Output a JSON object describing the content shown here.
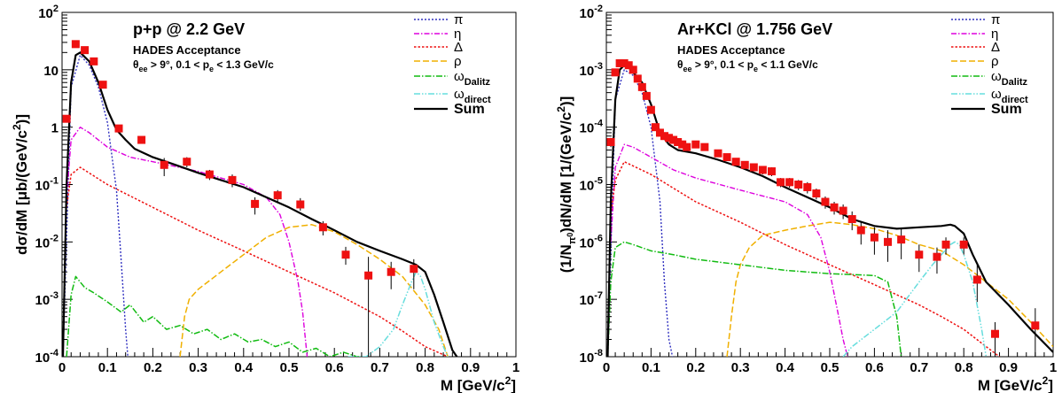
{
  "chart_data": [
    {
      "type": "line",
      "title": "p+p @ 2.2 GeV",
      "subtitle_lines": [
        "HADES Acceptance"
      ],
      "cuts": {
        "theta": "θ",
        "ee": "ee",
        "cut1": " > 9°, 0.1 < p",
        "e": "e",
        "cut2": " < 1.3 GeV/c"
      },
      "xlabel": "M [GeV/c²]",
      "ylabel": "dσ/dM [μb/(GeV/c²)]",
      "xlim": [
        0,
        1
      ],
      "ylim": [
        0.0001,
        100
      ],
      "yscale": "log",
      "xticks": [
        "0",
        "0.1",
        "0.2",
        "0.3",
        "0.4",
        "0.5",
        "0.6",
        "0.7",
        "0.8",
        "0.9",
        "1"
      ],
      "yticks": [
        {
          "base": "10",
          "exp": "-4",
          "v": 0.0001
        },
        {
          "base": "10",
          "exp": "-3",
          "v": 0.001
        },
        {
          "base": "10",
          "exp": "-2",
          "v": 0.01
        },
        {
          "base": "10",
          "exp": "-1",
          "v": 0.1
        },
        {
          "base": "1",
          "exp": "",
          "v": 1
        },
        {
          "base": "10",
          "exp": "",
          "v": 10
        },
        {
          "base": "10",
          "exp": "2",
          "v": 100
        }
      ],
      "legend_position": "top-right",
      "series": [
        {
          "name": "π",
          "color": "#3030c0",
          "dash": "2,2",
          "width": 1.4,
          "x": [
            0.002,
            0.02,
            0.04,
            0.06,
            0.08,
            0.1,
            0.12,
            0.13,
            0.14,
            0.145
          ],
          "y": [
            0.0001,
            5,
            18,
            12,
            5,
            1.2,
            0.08,
            0.005,
            0.0003,
            0.0001
          ]
        },
        {
          "name": "η",
          "color": "#dd00dd",
          "dash": "6,2,1.5,2",
          "width": 1.4,
          "x": [
            0.01,
            0.02,
            0.04,
            0.06,
            0.1,
            0.15,
            0.2,
            0.3,
            0.4,
            0.45,
            0.48,
            0.5,
            0.52,
            0.53,
            0.54
          ],
          "y": [
            0.06,
            0.6,
            1.0,
            0.8,
            0.45,
            0.3,
            0.25,
            0.17,
            0.1,
            0.06,
            0.03,
            0.01,
            0.002,
            0.0006,
            0.0001
          ]
        },
        {
          "name": "Δ",
          "color": "#ee1111",
          "dash": "2.5,2",
          "width": 1.5,
          "x": [
            0.01,
            0.02,
            0.04,
            0.1,
            0.2,
            0.3,
            0.4,
            0.5,
            0.6,
            0.7,
            0.75,
            0.8,
            0.85
          ],
          "y": [
            0.04,
            0.15,
            0.2,
            0.1,
            0.04,
            0.016,
            0.007,
            0.003,
            0.0013,
            0.0005,
            0.00028,
            0.00015,
            0.0001
          ]
        },
        {
          "name": "ρ",
          "color": "#f0b000",
          "dash": "7,3",
          "width": 1.5,
          "x": [
            0.26,
            0.27,
            0.28,
            0.3,
            0.35,
            0.4,
            0.45,
            0.5,
            0.55,
            0.6,
            0.65,
            0.7,
            0.75,
            0.8,
            0.83,
            0.85
          ],
          "y": [
            0.0001,
            0.0005,
            0.001,
            0.0015,
            0.003,
            0.006,
            0.012,
            0.018,
            0.02,
            0.015,
            0.009,
            0.005,
            0.0025,
            0.0008,
            0.0003,
            0.0001
          ]
        },
        {
          "name": "ω_Dalitz",
          "color": "#11bb11",
          "dash": "7,2,1.5,2",
          "width": 1.5,
          "x": [
            0.01,
            0.02,
            0.03,
            0.05,
            0.07,
            0.1,
            0.13,
            0.15,
            0.18,
            0.2,
            0.23,
            0.26,
            0.29,
            0.32,
            0.35,
            0.38,
            0.41,
            0.44,
            0.47,
            0.5,
            0.53,
            0.56,
            0.59,
            0.62,
            0.65,
            0.66
          ],
          "y": [
            0.0001,
            0.0012,
            0.0025,
            0.0016,
            0.0013,
            0.0009,
            0.0006,
            0.0008,
            0.0004,
            0.0005,
            0.0003,
            0.00035,
            0.00025,
            0.0003,
            0.0002,
            0.00025,
            0.00018,
            0.0002,
            0.00015,
            0.00018,
            0.00012,
            0.00014,
            0.0001,
            0.00012,
            0.0001,
            0.0001
          ]
        },
        {
          "name": "ω_direct",
          "color": "#66dddd",
          "dash": "7,2,1.5,2,1.5,2",
          "width": 1.5,
          "x": [
            0.63,
            0.67,
            0.7,
            0.73,
            0.75,
            0.77,
            0.78,
            0.79,
            0.8,
            0.82,
            0.84,
            0.85
          ],
          "y": [
            0.0001,
            0.0001,
            0.00015,
            0.0003,
            0.0008,
            0.002,
            0.003,
            0.0025,
            0.0015,
            0.0004,
            0.00015,
            0.0001
          ]
        },
        {
          "name": "Sum",
          "color": "#000000",
          "dash": "",
          "width": 2.2,
          "x": [
            0.002,
            0.01,
            0.02,
            0.03,
            0.04,
            0.06,
            0.08,
            0.1,
            0.12,
            0.14,
            0.16,
            0.2,
            0.25,
            0.3,
            0.35,
            0.4,
            0.45,
            0.5,
            0.55,
            0.6,
            0.65,
            0.7,
            0.75,
            0.78,
            0.8,
            0.82,
            0.84,
            0.86,
            0.87
          ],
          "y": [
            0.0001,
            0.1,
            6,
            18,
            20,
            14,
            6,
            2,
            0.9,
            0.6,
            0.42,
            0.3,
            0.22,
            0.16,
            0.12,
            0.09,
            0.06,
            0.04,
            0.025,
            0.016,
            0.01,
            0.007,
            0.005,
            0.004,
            0.003,
            0.0012,
            0.0004,
            0.00013,
            0.0001
          ]
        }
      ],
      "data_points": {
        "name": "data",
        "color": "#ee1111",
        "x": [
          0.01,
          0.03,
          0.05,
          0.07,
          0.09,
          0.125,
          0.175,
          0.225,
          0.275,
          0.325,
          0.375,
          0.425,
          0.475,
          0.525,
          0.575,
          0.625,
          0.675,
          0.725,
          0.775
        ],
        "y": [
          1.4,
          28,
          22,
          14,
          5.5,
          0.95,
          0.6,
          0.22,
          0.25,
          0.15,
          0.12,
          0.046,
          0.065,
          0.045,
          0.018,
          0.006,
          0.0026,
          0.003,
          0.0034
        ],
        "err_low": [
          1.2,
          25,
          20,
          12.5,
          5,
          0.88,
          0.55,
          0.14,
          0.2,
          0.12,
          0.09,
          0.03,
          0.05,
          0.035,
          0.013,
          0.004,
          0.0001,
          0.0015,
          0.0015
        ],
        "err_high": [
          1.6,
          31,
          24,
          15.5,
          6,
          1.02,
          0.65,
          0.29,
          0.3,
          0.18,
          0.15,
          0.06,
          0.08,
          0.058,
          0.023,
          0.0082,
          0.0055,
          0.0045,
          0.005
        ]
      }
    },
    {
      "type": "line",
      "title": "Ar+KCl @ 1.756 GeV",
      "subtitle_lines": [
        "HADES Acceptance"
      ],
      "cuts": {
        "theta": "θ",
        "ee": "ee",
        "cut1": " > 9°, 0.1 < p",
        "e": "e",
        "cut2": " < 1.1 GeV/c"
      },
      "xlabel": "M [GeV/c²]",
      "ylabel": "(1/N_π⁰)dN/dM [1/(GeV/c²)]",
      "xlim": [
        0,
        1
      ],
      "ylim": [
        1e-08,
        0.01
      ],
      "yscale": "log",
      "xticks": [
        "0",
        "0.1",
        "0.2",
        "0.3",
        "0.4",
        "0.5",
        "0.6",
        "0.7",
        "0.8",
        "0.9",
        "1"
      ],
      "yticks": [
        {
          "base": "10",
          "exp": "-8",
          "v": 1e-08
        },
        {
          "base": "10",
          "exp": "-7",
          "v": 1e-07
        },
        {
          "base": "10",
          "exp": "-6",
          "v": 1e-06
        },
        {
          "base": "10",
          "exp": "-5",
          "v": 1e-05
        },
        {
          "base": "10",
          "exp": "-4",
          "v": 0.0001
        },
        {
          "base": "10",
          "exp": "-3",
          "v": 0.001
        },
        {
          "base": "10",
          "exp": "-2",
          "v": 0.01
        }
      ],
      "legend_position": "top-right",
      "series": [
        {
          "name": "π",
          "color": "#3030c0",
          "dash": "2,2",
          "width": 1.4,
          "x": [
            0.003,
            0.02,
            0.04,
            0.06,
            0.08,
            0.1,
            0.12,
            0.13,
            0.14,
            0.148
          ],
          "y": [
            1e-08,
            0.0003,
            0.001,
            0.0008,
            0.0004,
            0.0001,
            5e-06,
            2e-07,
            2e-08,
            1e-08
          ]
        },
        {
          "name": "η",
          "color": "#dd00dd",
          "dash": "6,2,1.5,2",
          "width": 1.4,
          "x": [
            0.01,
            0.02,
            0.04,
            0.06,
            0.1,
            0.15,
            0.2,
            0.3,
            0.4,
            0.45,
            0.48,
            0.5,
            0.52,
            0.53,
            0.54
          ],
          "y": [
            1e-06,
            2e-05,
            5e-05,
            4.5e-05,
            3e-05,
            1.8e-05,
            1.3e-05,
            8e-06,
            5e-06,
            3e-06,
            1.2e-06,
            3e-07,
            5e-08,
            2e-08,
            1e-08
          ]
        },
        {
          "name": "Δ",
          "color": "#ee1111",
          "dash": "2.5,2",
          "width": 1.5,
          "x": [
            0.01,
            0.02,
            0.04,
            0.1,
            0.2,
            0.3,
            0.4,
            0.5,
            0.6,
            0.7,
            0.75,
            0.8,
            0.85,
            0.88
          ],
          "y": [
            3e-06,
            1.2e-05,
            2.5e-05,
            1.5e-05,
            5e-06,
            2.2e-06,
            9e-07,
            4e-07,
            1.8e-07,
            8e-08,
            5e-08,
            3e-08,
            1.5e-08,
            1e-08
          ]
        },
        {
          "name": "ρ",
          "color": "#f0b000",
          "dash": "7,3",
          "width": 1.5,
          "x": [
            0.27,
            0.28,
            0.29,
            0.3,
            0.32,
            0.35,
            0.4,
            0.45,
            0.5,
            0.55,
            0.6,
            0.65,
            0.7,
            0.75,
            0.8,
            0.85,
            0.9,
            0.95,
            1.0
          ],
          "y": [
            1e-08,
            5e-08,
            2e-07,
            4e-07,
            8e-07,
            1.3e-06,
            1.6e-06,
            1.9e-06,
            2.2e-06,
            2e-06,
            1.7e-06,
            1.3e-06,
            9e-07,
            7e-07,
            4e-07,
            2e-07,
            1e-07,
            4e-08,
            1.5e-08
          ]
        },
        {
          "name": "ω_Dalitz",
          "color": "#11bb11",
          "dash": "7,2,1.5,2",
          "width": 1.5,
          "x": [
            0.003,
            0.01,
            0.02,
            0.04,
            0.06,
            0.1,
            0.15,
            0.2,
            0.3,
            0.4,
            0.5,
            0.55,
            0.6,
            0.63,
            0.65,
            0.66
          ],
          "y": [
            1e-08,
            2e-07,
            8e-07,
            1e-06,
            9e-07,
            7e-07,
            6e-07,
            5e-07,
            4e-07,
            3.2e-07,
            2.8e-07,
            2.7e-07,
            2.6e-07,
            2e-07,
            5e-08,
            1e-08
          ]
        },
        {
          "name": "ω_direct",
          "color": "#66dddd",
          "dash": "7,2,1.5,2,1.5,2",
          "width": 1.5,
          "x": [
            0.53,
            0.55,
            0.6,
            0.65,
            0.7,
            0.73,
            0.75,
            0.77,
            0.78,
            0.79,
            0.8,
            0.82,
            0.84,
            0.85
          ],
          "y": [
            1e-08,
            1.5e-08,
            3e-08,
            6e-08,
            2e-07,
            4e-07,
            6e-07,
            9e-07,
            1e-06,
            9e-07,
            6e-07,
            2e-07,
            3e-08,
            1e-08
          ]
        },
        {
          "name": "Sum",
          "color": "#000000",
          "dash": "",
          "width": 2.2,
          "x": [
            0.003,
            0.01,
            0.02,
            0.03,
            0.04,
            0.05,
            0.06,
            0.08,
            0.1,
            0.12,
            0.14,
            0.16,
            0.2,
            0.25,
            0.3,
            0.35,
            0.4,
            0.45,
            0.5,
            0.55,
            0.6,
            0.65,
            0.7,
            0.75,
            0.77,
            0.78,
            0.8,
            0.82,
            0.85,
            0.9,
            0.95,
            1.0
          ],
          "y": [
            1e-08,
            5e-06,
            0.0003,
            0.001,
            0.0012,
            0.0011,
            0.0009,
            0.0006,
            0.00025,
            8e-05,
            5e-05,
            4e-05,
            3.5e-05,
            2.7e-05,
            2e-05,
            1.4e-05,
            9e-06,
            6e-06,
            4e-06,
            2.5e-06,
            1.9e-06,
            1.7e-06,
            1.8e-06,
            1.9e-06,
            2e-06,
            1.9e-06,
            1.4e-06,
            6e-07,
            2e-07,
            8e-08,
            3e-08,
            1.2e-08
          ]
        }
      ],
      "data_points": {
        "name": "data",
        "color": "#ee1111",
        "x": [
          0.01,
          0.02,
          0.03,
          0.04,
          0.05,
          0.06,
          0.07,
          0.08,
          0.09,
          0.1,
          0.11,
          0.12,
          0.13,
          0.14,
          0.15,
          0.16,
          0.17,
          0.18,
          0.2,
          0.22,
          0.25,
          0.27,
          0.29,
          0.31,
          0.33,
          0.35,
          0.37,
          0.39,
          0.41,
          0.43,
          0.45,
          0.47,
          0.49,
          0.51,
          0.53,
          0.55,
          0.57,
          0.6,
          0.63,
          0.66,
          0.7,
          0.74,
          0.76,
          0.8,
          0.83,
          0.87,
          0.96
        ],
        "y": [
          5.5e-05,
          0.0009,
          0.0013,
          0.0013,
          0.0012,
          0.001,
          0.0007,
          0.0005,
          0.00035,
          0.0002,
          0.0001,
          8e-05,
          7e-05,
          6.5e-05,
          6e-05,
          5.5e-05,
          5e-05,
          4.5e-05,
          5e-05,
          4.5e-05,
          3.5e-05,
          3e-05,
          2.5e-05,
          2.2e-05,
          2e-05,
          1.8e-05,
          1.7e-05,
          1.1e-05,
          1.1e-05,
          1e-05,
          9e-06,
          7e-06,
          5e-06,
          4e-06,
          3.5e-06,
          2.5e-06,
          1.6e-06,
          1.2e-06,
          1e-06,
          1.1e-06,
          6e-07,
          5.5e-07,
          9e-07,
          9e-07,
          2.2e-07,
          2.5e-08,
          3.5e-08
        ],
        "err_low": [
          4.5e-05,
          0.0008,
          0.0012,
          0.0012,
          0.0011,
          0.0009,
          0.00063,
          0.00045,
          0.00031,
          0.00018,
          9e-05,
          7.2e-05,
          6.3e-05,
          5.8e-05,
          5.4e-05,
          4.9e-05,
          4.5e-05,
          4e-05,
          4.5e-05,
          4e-05,
          3.1e-05,
          2.7e-05,
          2.2e-05,
          1.9e-05,
          1.7e-05,
          1.5e-05,
          1.4e-05,
          9e-06,
          8.8e-06,
          8e-06,
          7e-06,
          5.5e-06,
          3.8e-06,
          3e-06,
          2.5e-06,
          1.6e-06,
          9e-07,
          6e-07,
          4.5e-07,
          5e-07,
          3e-07,
          2.8e-07,
          6e-07,
          6e-07,
          9e-08,
          1e-08,
          1e-08
        ],
        "err_high": [
          6.5e-05,
          0.001,
          0.0014,
          0.0014,
          0.0013,
          0.0011,
          0.00077,
          0.00055,
          0.00039,
          0.00022,
          0.00011,
          8.8e-05,
          7.7e-05,
          7.2e-05,
          6.6e-05,
          6.1e-05,
          5.5e-05,
          5e-05,
          5.5e-05,
          5e-05,
          3.9e-05,
          3.3e-05,
          2.8e-05,
          2.5e-05,
          2.3e-05,
          2.1e-05,
          2e-05,
          1.3e-05,
          1.3e-05,
          1.2e-05,
          1.1e-05,
          8.5e-06,
          6.2e-06,
          5e-06,
          4.5e-06,
          3.4e-06,
          2.3e-06,
          1.8e-06,
          1.6e-06,
          1.7e-06,
          9e-07,
          8e-07,
          1.2e-06,
          1.2e-06,
          4e-07,
          4e-08,
          7e-08
        ]
      }
    }
  ]
}
